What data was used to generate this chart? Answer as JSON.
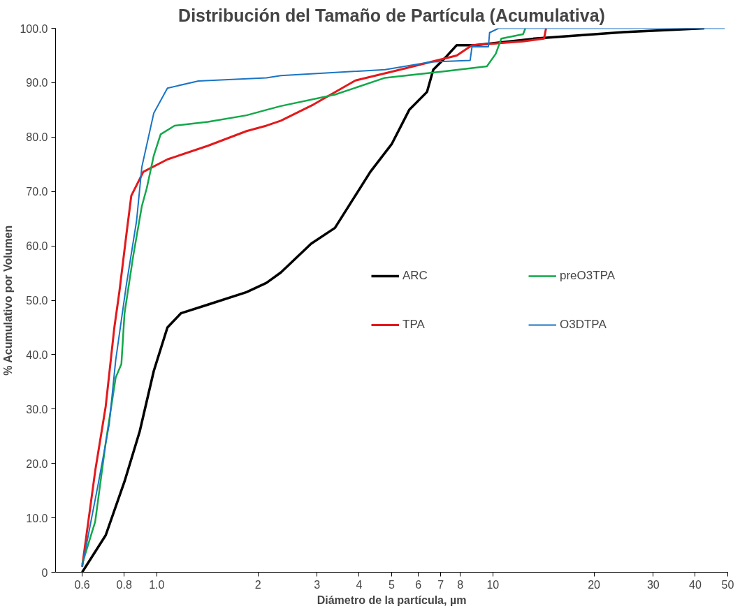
{
  "chart_data": {
    "type": "line",
    "title": "Distribución del Tamaño de Partícula (Acumulativa)",
    "xlabel": "Diámetro de la partícula, µm",
    "ylabel": "% Acumulativo por Volumen",
    "log": "x",
    "grid": false,
    "legend": "center right",
    "marker": "none",
    "line_style": "solid",
    "xlim": [
      0.5,
      50
    ],
    "xticks": [
      {
        "value": 0.6,
        "label": "0.6"
      },
      {
        "value": 0.8,
        "label": "0.8"
      },
      {
        "value": 1,
        "label": "1.0"
      },
      2,
      3,
      4,
      5,
      6,
      7,
      8,
      10,
      20,
      30,
      40,
      50
    ],
    "ylim": [
      0,
      100
    ],
    "yticks": [
      0,
      {
        "value": 10,
        "label": "10.0"
      },
      {
        "value": 20,
        "label": "20.0"
      },
      {
        "value": 30,
        "label": "30.0"
      },
      {
        "value": 40,
        "label": "40.0"
      },
      {
        "value": 50,
        "label": "50.0"
      },
      {
        "value": 60,
        "label": "60.0"
      },
      {
        "value": 70,
        "label": "70.0"
      },
      {
        "value": 80,
        "label": "80.0"
      },
      {
        "value": 90,
        "label": "90.0"
      },
      {
        "value": 100,
        "label": "100.0"
      }
    ],
    "series": [
      {
        "name": "ARC",
        "color": "#000000",
        "x": [
          0.6,
          0.705,
          0.802,
          0.89,
          0.98,
          1.076,
          1.18,
          1.42,
          1.85,
          2.12,
          2.34,
          2.88,
          3.39,
          4.32,
          5.0,
          5.64,
          6.37,
          6.65,
          7.22,
          7.81,
          8.85,
          13.3,
          24.5,
          42.6
        ],
        "values": [
          0,
          6.8,
          16.7,
          25.9,
          37,
          45,
          47.6,
          49.2,
          51.5,
          53.2,
          55.1,
          60.4,
          63.3,
          73.6,
          78.7,
          85,
          88.3,
          92.4,
          94.6,
          96.9,
          96.9,
          98.1,
          99.3,
          100
        ]
      },
      {
        "name": "TPA",
        "color": "#e3191c",
        "x": [
          0.6,
          0.656,
          0.705,
          0.748,
          0.774,
          0.812,
          0.84,
          0.912,
          1.076,
          1.42,
          1.85,
          2.12,
          2.34,
          2.93,
          3.9,
          5.3,
          6.53,
          7.81,
          8.67,
          12.3,
          14.2,
          14.4
        ],
        "values": [
          1,
          18.6,
          30.5,
          45,
          51.5,
          62,
          69.2,
          73.6,
          75.9,
          78.4,
          81.1,
          82.1,
          83,
          86,
          90.4,
          92.4,
          93.8,
          95,
          96.9,
          97.6,
          98.1,
          100
        ]
      },
      {
        "name": "preO3TPA",
        "color": "#12a84a",
        "x": [
          0.6,
          0.656,
          0.705,
          0.755,
          0.785,
          0.802,
          0.851,
          0.903,
          0.934,
          0.98,
          1.027,
          1.13,
          1.42,
          1.85,
          2.12,
          2.34,
          3.39,
          4.78,
          7.22,
          9.6,
          10.2,
          10.6,
          12.3,
          12.5
        ],
        "values": [
          1.5,
          9.3,
          23.8,
          35.8,
          38.3,
          47.6,
          58.1,
          67.3,
          70.6,
          76.6,
          80.5,
          82.1,
          82.8,
          84,
          85,
          85.7,
          87.8,
          90.9,
          92.1,
          93,
          95.3,
          98.1,
          98.9,
          100
        ]
      },
      {
        "name": "O3DTPA",
        "color": "#1a74c4",
        "x": [
          0.6,
          0.672,
          0.722,
          0.755,
          0.812,
          0.871,
          0.903,
          0.98,
          1.076,
          1.33,
          2.12,
          2.34,
          4.78,
          6.53,
          8.56,
          8.67,
          9.7,
          9.78,
          10.4,
          49.0
        ],
        "values": [
          1,
          16.7,
          27.2,
          39,
          52.8,
          64.6,
          74.5,
          84.4,
          89,
          90.3,
          90.9,
          91.3,
          92.4,
          93.8,
          94.1,
          96.6,
          96.6,
          99.2,
          100,
          100
        ]
      }
    ]
  }
}
